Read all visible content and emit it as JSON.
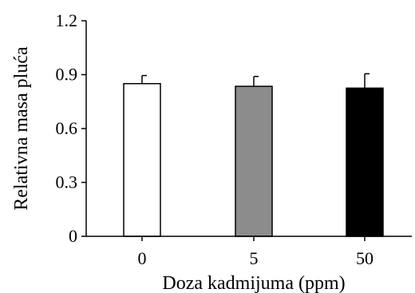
{
  "chart_data": {
    "type": "bar",
    "title": "",
    "xlabel": "Doza kadmijuma (ppm)",
    "ylabel": "Relativna masa pluća",
    "categories": [
      "0",
      "5",
      "50"
    ],
    "values": [
      0.85,
      0.835,
      0.825
    ],
    "errors": [
      0.045,
      0.055,
      0.08
    ],
    "bar_colors": [
      "#ffffff",
      "#8c8c8c",
      "#000000"
    ],
    "ylim": [
      0,
      1.2
    ],
    "yticks": [
      "0",
      "0.3",
      "0.6",
      "0.9",
      "1.2"
    ],
    "grid": false,
    "legend": "none"
  }
}
